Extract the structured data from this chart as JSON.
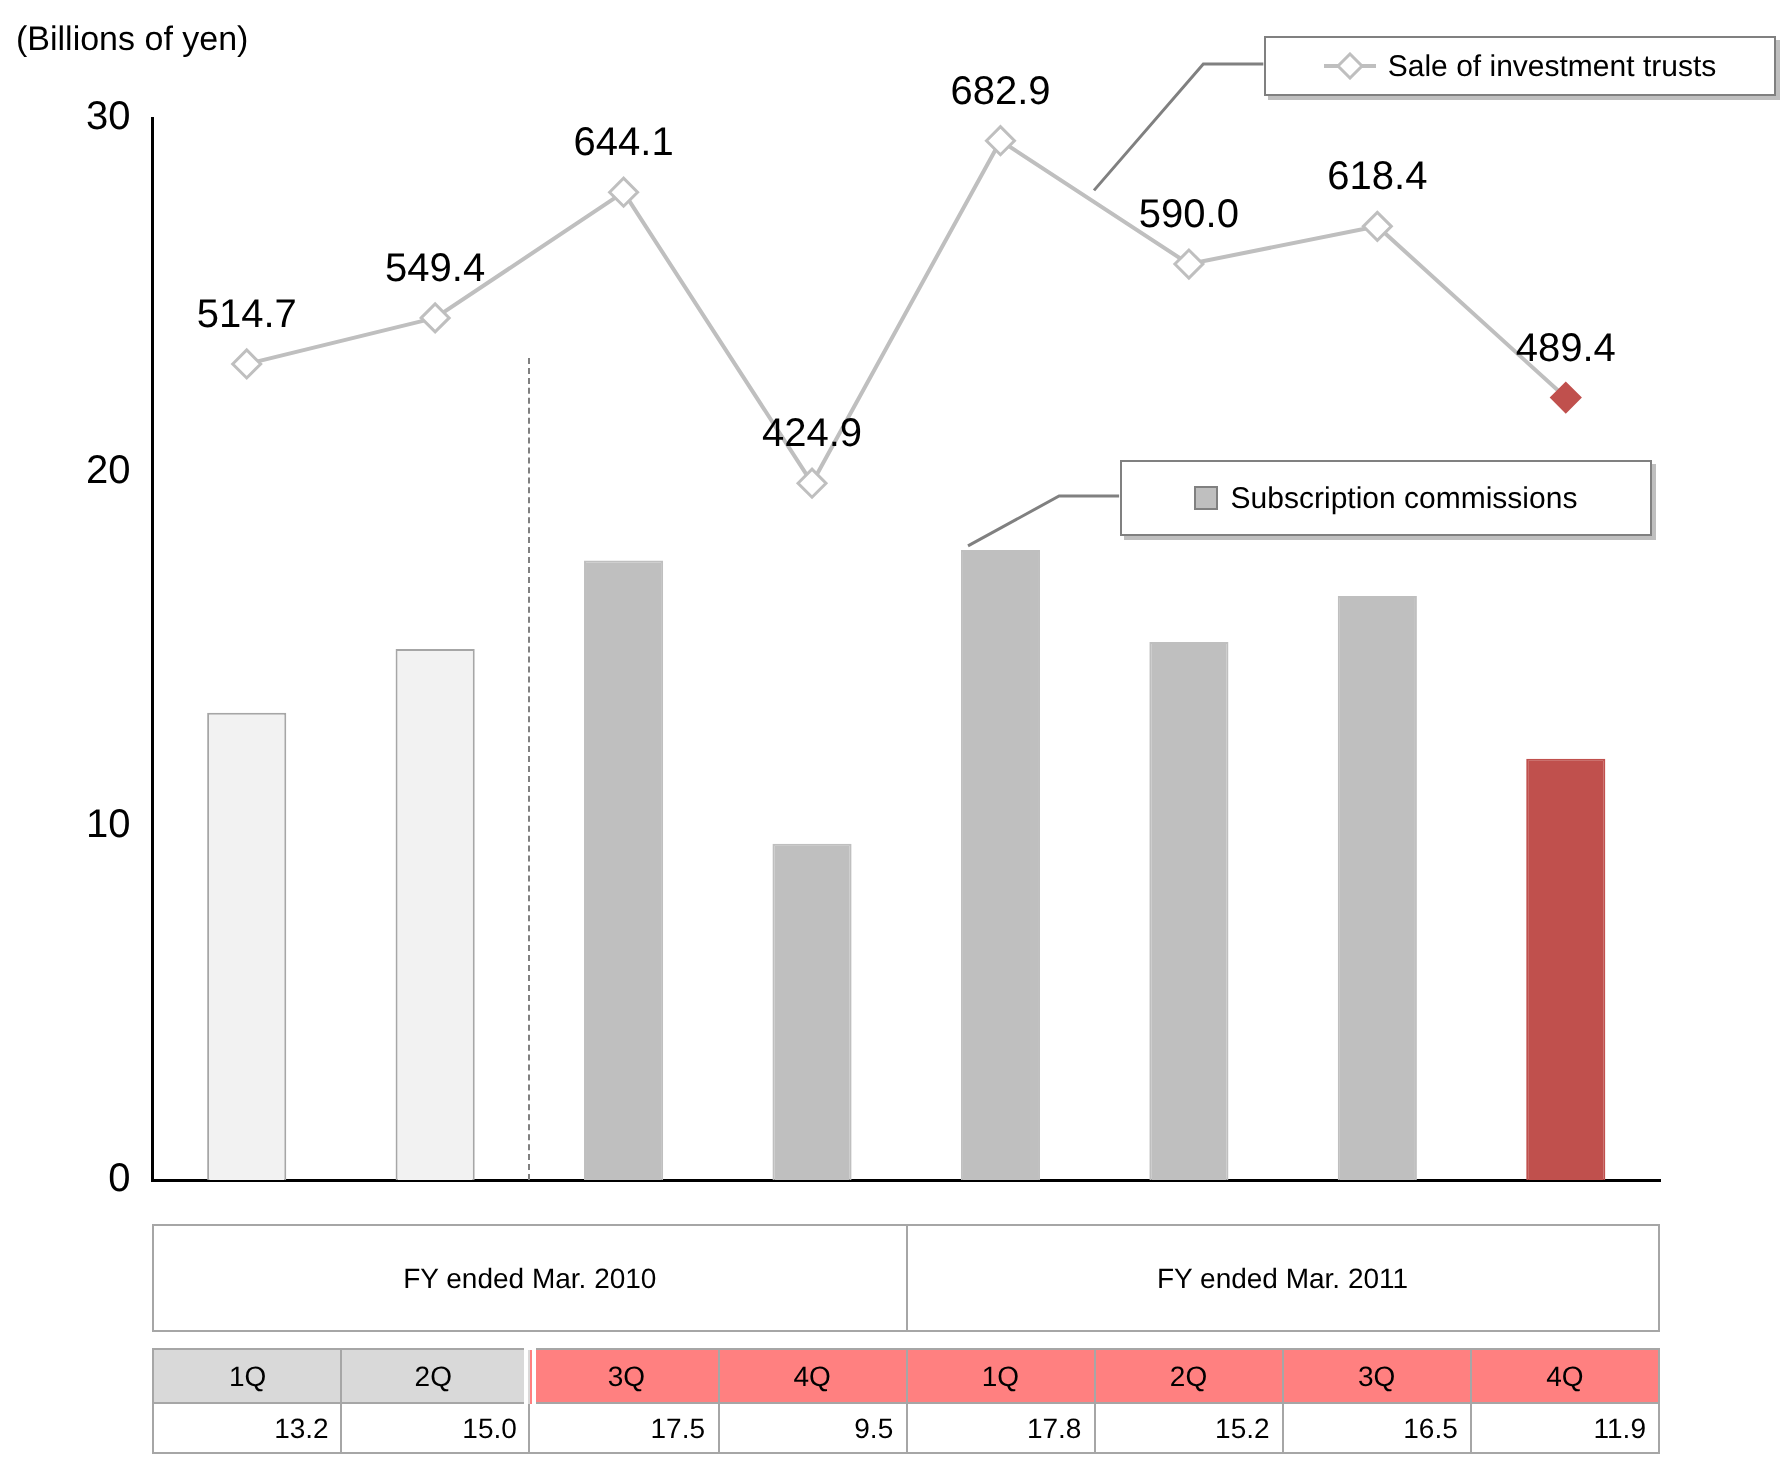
{
  "chart_data": {
    "type": "bar",
    "ylabel": "(Billions of yen)",
    "categories": [
      "1Q",
      "2Q",
      "3Q",
      "4Q",
      "1Q",
      "2Q",
      "3Q",
      "4Q"
    ],
    "series": [
      {
        "name": "Subscription commissions",
        "colors": [
          "#f2f2f2",
          "#f2f2f2",
          "#bfbfbf",
          "#bfbfbf",
          "#bfbfbf",
          "#bfbfbf",
          "#bfbfbf",
          "#c0504d"
        ],
        "values": [
          13.2,
          15.0,
          17.5,
          9.5,
          17.8,
          15.2,
          16.5,
          11.9
        ],
        "value_labels": [
          "13.2",
          "15.0",
          "17.5",
          "9.5",
          "17.8",
          "15.2",
          "16.5",
          "11.9"
        ]
      },
      {
        "name": "Sale of investment trusts",
        "type": "line",
        "axis": "y2",
        "color": "#bfbfbf",
        "colors": [
          "#ffffff",
          "#ffffff",
          "#ffffff",
          "#ffffff",
          "#ffffff",
          "#ffffff",
          "#ffffff",
          "#c0504d"
        ],
        "marker": "diamond",
        "values": [
          514.7,
          549.4,
          644.1,
          424.9,
          682.9,
          590.0,
          618.4,
          489.4
        ],
        "value_labels": [
          "514.7",
          "549.4",
          "644.1",
          "424.9",
          "682.9",
          "590.0",
          "618.4",
          "489.4"
        ]
      }
    ],
    "ylim": [
      0,
      30
    ],
    "yticks": [
      0,
      10,
      20,
      30
    ],
    "y2lim": [
      -100,
      700
    ],
    "legend": "top right",
    "annotations": [
      "FY ended Mar. 2010",
      "FY ended Mar. 2011"
    ]
  }
}
